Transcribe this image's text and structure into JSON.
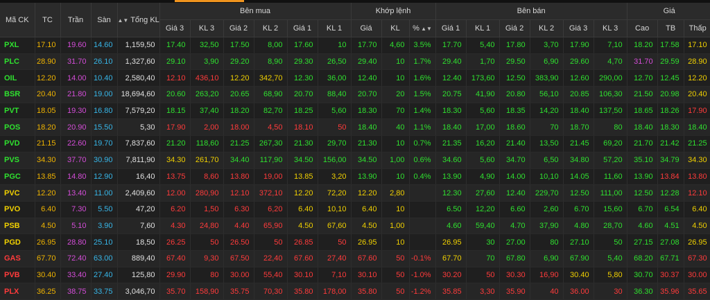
{
  "columns": {
    "symbol": "Mã CK",
    "ref": "TC",
    "ceil": "Trần",
    "floor": "Sàn",
    "total_vol": "Tổng KL",
    "buy_group": "Bên mua",
    "match_group": "Khớp lệnh",
    "sell_group": "Bên bán",
    "price_group": "Giá",
    "buy": [
      "Giá 3",
      "KL 3",
      "Giá 2",
      "KL 2",
      "Giá 1",
      "KL 1"
    ],
    "match": [
      "Giá",
      "KL",
      "%"
    ],
    "sell": [
      "Giá 1",
      "KL 1",
      "Giá 2",
      "KL 2",
      "Giá 3",
      "KL 3"
    ],
    "price": [
      "Cao",
      "TB",
      "Thấp"
    ]
  },
  "sort_icon": "sort-arrows-icon",
  "colors": {
    "ref": "#f0b400",
    "ceil": "#d44dd8",
    "floor": "#37b6e8",
    "up": "#2fe02f",
    "down": "#ff3b3b",
    "eq": "#f0d000",
    "accent": "#f0941e"
  },
  "rows": [
    {
      "s": "PXL",
      "c": "u",
      "tc": "17.10",
      "tr": "19.60",
      "sa": "14.60",
      "tkl": "1,159,50",
      "b": [
        [
          "17.40",
          "u"
        ],
        [
          "32,50",
          "u"
        ],
        [
          "17.50",
          "u"
        ],
        [
          "8,00",
          "u"
        ],
        [
          "17.60",
          "u"
        ],
        [
          "10",
          "u"
        ]
      ],
      "m": [
        [
          "17.70",
          "u"
        ],
        [
          "4,60",
          "u"
        ],
        [
          "3.5%",
          "u"
        ]
      ],
      "a": [
        [
          "17.70",
          "u"
        ],
        [
          "5,40",
          "u"
        ],
        [
          "17.80",
          "u"
        ],
        [
          "3,70",
          "u"
        ],
        [
          "17.90",
          "u"
        ],
        [
          "7,10",
          "u"
        ]
      ],
      "p": [
        [
          "18.20",
          "u"
        ],
        [
          "17.58",
          "u"
        ],
        [
          "17.10",
          "r"
        ]
      ]
    },
    {
      "s": "PLC",
      "c": "u",
      "tc": "28.90",
      "tr": "31.70",
      "sa": "26.10",
      "tkl": "1,327,60",
      "b": [
        [
          "29.10",
          "u"
        ],
        [
          "3,90",
          "u"
        ],
        [
          "29.20",
          "u"
        ],
        [
          "8,90",
          "u"
        ],
        [
          "29.30",
          "u"
        ],
        [
          "26,50",
          "u"
        ]
      ],
      "m": [
        [
          "29.40",
          "u"
        ],
        [
          "10",
          "u"
        ],
        [
          "1.7%",
          "u"
        ]
      ],
      "a": [
        [
          "29.40",
          "u"
        ],
        [
          "1,70",
          "u"
        ],
        [
          "29.50",
          "u"
        ],
        [
          "6,90",
          "u"
        ],
        [
          "29.60",
          "u"
        ],
        [
          "4,70",
          "u"
        ]
      ],
      "p": [
        [
          "31.70",
          "c"
        ],
        [
          "29.59",
          "u"
        ],
        [
          "28.90",
          "r"
        ]
      ]
    },
    {
      "s": "OIL",
      "c": "u",
      "tc": "12.20",
      "tr": "14.00",
      "sa": "10.40",
      "tkl": "2,580,40",
      "b": [
        [
          "12.10",
          "d"
        ],
        [
          "436,10",
          "d"
        ],
        [
          "12.20",
          "r"
        ],
        [
          "342,70",
          "r"
        ],
        [
          "12.30",
          "u"
        ],
        [
          "36,00",
          "u"
        ]
      ],
      "m": [
        [
          "12.40",
          "u"
        ],
        [
          "10",
          "u"
        ],
        [
          "1.6%",
          "u"
        ]
      ],
      "a": [
        [
          "12.40",
          "u"
        ],
        [
          "173,60",
          "u"
        ],
        [
          "12.50",
          "u"
        ],
        [
          "383,90",
          "u"
        ],
        [
          "12.60",
          "u"
        ],
        [
          "290,00",
          "u"
        ]
      ],
      "p": [
        [
          "12.70",
          "u"
        ],
        [
          "12.45",
          "u"
        ],
        [
          "12.20",
          "r"
        ]
      ]
    },
    {
      "s": "BSR",
      "c": "u",
      "tc": "20.40",
      "tr": "21.80",
      "sa": "19.00",
      "tkl": "18,694,60",
      "b": [
        [
          "20.60",
          "u"
        ],
        [
          "263,20",
          "u"
        ],
        [
          "20.65",
          "u"
        ],
        [
          "68,90",
          "u"
        ],
        [
          "20.70",
          "u"
        ],
        [
          "88,40",
          "u"
        ]
      ],
      "m": [
        [
          "20.70",
          "u"
        ],
        [
          "20",
          "u"
        ],
        [
          "1.5%",
          "u"
        ]
      ],
      "a": [
        [
          "20.75",
          "u"
        ],
        [
          "41,90",
          "u"
        ],
        [
          "20.80",
          "u"
        ],
        [
          "56,10",
          "u"
        ],
        [
          "20.85",
          "u"
        ],
        [
          "106,30",
          "u"
        ]
      ],
      "p": [
        [
          "21.50",
          "u"
        ],
        [
          "20.98",
          "u"
        ],
        [
          "20.40",
          "r"
        ]
      ]
    },
    {
      "s": "PVT",
      "c": "u",
      "tc": "18.05",
      "tr": "19.30",
      "sa": "16.80",
      "tkl": "7,579,20",
      "b": [
        [
          "18.15",
          "u"
        ],
        [
          "37,40",
          "u"
        ],
        [
          "18.20",
          "u"
        ],
        [
          "82,70",
          "u"
        ],
        [
          "18.25",
          "u"
        ],
        [
          "5,60",
          "u"
        ]
      ],
      "m": [
        [
          "18.30",
          "u"
        ],
        [
          "70",
          "u"
        ],
        [
          "1.4%",
          "u"
        ]
      ],
      "a": [
        [
          "18.30",
          "u"
        ],
        [
          "5,60",
          "u"
        ],
        [
          "18.35",
          "u"
        ],
        [
          "14,20",
          "u"
        ],
        [
          "18.40",
          "u"
        ],
        [
          "137,50",
          "u"
        ]
      ],
      "p": [
        [
          "18.65",
          "u"
        ],
        [
          "18.26",
          "u"
        ],
        [
          "17.90",
          "d"
        ]
      ]
    },
    {
      "s": "POS",
      "c": "u",
      "tc": "18.20",
      "tr": "20.90",
      "sa": "15.50",
      "tkl": "5,30",
      "b": [
        [
          "17.90",
          "d"
        ],
        [
          "2,00",
          "d"
        ],
        [
          "18.00",
          "d"
        ],
        [
          "4,50",
          "d"
        ],
        [
          "18.10",
          "d"
        ],
        [
          "50",
          "d"
        ]
      ],
      "m": [
        [
          "18.40",
          "u"
        ],
        [
          "40",
          "u"
        ],
        [
          "1.1%",
          "u"
        ]
      ],
      "a": [
        [
          "18.40",
          "u"
        ],
        [
          "17,00",
          "u"
        ],
        [
          "18.60",
          "u"
        ],
        [
          "70",
          "u"
        ],
        [
          "18.70",
          "u"
        ],
        [
          "80",
          "u"
        ]
      ],
      "p": [
        [
          "18.40",
          "u"
        ],
        [
          "18.30",
          "u"
        ],
        [
          "18.40",
          "u"
        ]
      ]
    },
    {
      "s": "PVD",
      "c": "u",
      "tc": "21.15",
      "tr": "22.60",
      "sa": "19.70",
      "tkl": "7,837,60",
      "b": [
        [
          "21.20",
          "u"
        ],
        [
          "118,60",
          "u"
        ],
        [
          "21.25",
          "u"
        ],
        [
          "267,30",
          "u"
        ],
        [
          "21.30",
          "u"
        ],
        [
          "29,70",
          "u"
        ]
      ],
      "m": [
        [
          "21.30",
          "u"
        ],
        [
          "10",
          "u"
        ],
        [
          "0.7%",
          "u"
        ]
      ],
      "a": [
        [
          "21.35",
          "u"
        ],
        [
          "16,20",
          "u"
        ],
        [
          "21.40",
          "u"
        ],
        [
          "13,50",
          "u"
        ],
        [
          "21.45",
          "u"
        ],
        [
          "69,20",
          "u"
        ]
      ],
      "p": [
        [
          "21.70",
          "u"
        ],
        [
          "21.42",
          "u"
        ],
        [
          "21.25",
          "u"
        ]
      ]
    },
    {
      "s": "PVS",
      "c": "u",
      "tc": "34.30",
      "tr": "37.70",
      "sa": "30.90",
      "tkl": "7,811,90",
      "b": [
        [
          "34.30",
          "r"
        ],
        [
          "261,70",
          "r"
        ],
        [
          "34.40",
          "u"
        ],
        [
          "117,90",
          "u"
        ],
        [
          "34.50",
          "u"
        ],
        [
          "156,00",
          "u"
        ]
      ],
      "m": [
        [
          "34.50",
          "u"
        ],
        [
          "1,00",
          "u"
        ],
        [
          "0.6%",
          "u"
        ]
      ],
      "a": [
        [
          "34.60",
          "u"
        ],
        [
          "5,60",
          "u"
        ],
        [
          "34.70",
          "u"
        ],
        [
          "6,50",
          "u"
        ],
        [
          "34.80",
          "u"
        ],
        [
          "57,20",
          "u"
        ]
      ],
      "p": [
        [
          "35.10",
          "u"
        ],
        [
          "34.79",
          "u"
        ],
        [
          "34.30",
          "r"
        ]
      ]
    },
    {
      "s": "PGC",
      "c": "u",
      "tc": "13.85",
      "tr": "14.80",
      "sa": "12.90",
      "tkl": "16,40",
      "b": [
        [
          "13.75",
          "d"
        ],
        [
          "8,60",
          "d"
        ],
        [
          "13.80",
          "d"
        ],
        [
          "19,00",
          "d"
        ],
        [
          "13.85",
          "r"
        ],
        [
          "3,20",
          "r"
        ]
      ],
      "m": [
        [
          "13.90",
          "u"
        ],
        [
          "10",
          "u"
        ],
        [
          "0.4%",
          "u"
        ]
      ],
      "a": [
        [
          "13.90",
          "u"
        ],
        [
          "4,90",
          "u"
        ],
        [
          "14.00",
          "u"
        ],
        [
          "10,10",
          "u"
        ],
        [
          "14.05",
          "u"
        ],
        [
          "11,60",
          "u"
        ]
      ],
      "p": [
        [
          "13.90",
          "u"
        ],
        [
          "13.84",
          "d"
        ],
        [
          "13.80",
          "d"
        ]
      ]
    },
    {
      "s": "PVC",
      "c": "r",
      "tc": "12.20",
      "tr": "13.40",
      "sa": "11.00",
      "tkl": "2,409,60",
      "b": [
        [
          "12.00",
          "d"
        ],
        [
          "280,90",
          "d"
        ],
        [
          "12.10",
          "d"
        ],
        [
          "372,10",
          "d"
        ],
        [
          "12.20",
          "r"
        ],
        [
          "72,20",
          "r"
        ]
      ],
      "m": [
        [
          "12.20",
          "r"
        ],
        [
          "2,80",
          "r"
        ],
        [
          "",
          ""
        ]
      ],
      "a": [
        [
          "12.30",
          "u"
        ],
        [
          "27,60",
          "u"
        ],
        [
          "12.40",
          "u"
        ],
        [
          "229,70",
          "u"
        ],
        [
          "12.50",
          "u"
        ],
        [
          "111,00",
          "u"
        ]
      ],
      "p": [
        [
          "12.50",
          "u"
        ],
        [
          "12.28",
          "u"
        ],
        [
          "12.10",
          "d"
        ]
      ]
    },
    {
      "s": "PVO",
      "c": "r",
      "tc": "6.40",
      "tr": "7.30",
      "sa": "5.50",
      "tkl": "47,20",
      "b": [
        [
          "6.20",
          "d"
        ],
        [
          "1,50",
          "d"
        ],
        [
          "6.30",
          "d"
        ],
        [
          "6,20",
          "d"
        ],
        [
          "6.40",
          "r"
        ],
        [
          "10,10",
          "r"
        ]
      ],
      "m": [
        [
          "6.40",
          "r"
        ],
        [
          "10",
          "r"
        ],
        [
          "",
          ""
        ]
      ],
      "a": [
        [
          "6.50",
          "u"
        ],
        [
          "12,20",
          "u"
        ],
        [
          "6.60",
          "u"
        ],
        [
          "2,60",
          "u"
        ],
        [
          "6.70",
          "u"
        ],
        [
          "15,60",
          "u"
        ]
      ],
      "p": [
        [
          "6.70",
          "u"
        ],
        [
          "6.54",
          "u"
        ],
        [
          "6.40",
          "r"
        ]
      ]
    },
    {
      "s": "PSB",
      "c": "r",
      "tc": "4.50",
      "tr": "5.10",
      "sa": "3.90",
      "tkl": "7,60",
      "b": [
        [
          "4.30",
          "d"
        ],
        [
          "24,80",
          "d"
        ],
        [
          "4.40",
          "d"
        ],
        [
          "65,90",
          "d"
        ],
        [
          "4.50",
          "r"
        ],
        [
          "67,60",
          "r"
        ]
      ],
      "m": [
        [
          "4.50",
          "r"
        ],
        [
          "1,00",
          "r"
        ],
        [
          "",
          ""
        ]
      ],
      "a": [
        [
          "4.60",
          "u"
        ],
        [
          "59,40",
          "u"
        ],
        [
          "4.70",
          "u"
        ],
        [
          "37,90",
          "u"
        ],
        [
          "4.80",
          "u"
        ],
        [
          "28,70",
          "u"
        ]
      ],
      "p": [
        [
          "4.60",
          "u"
        ],
        [
          "4.51",
          "u"
        ],
        [
          "4.50",
          "r"
        ]
      ]
    },
    {
      "s": "PGD",
      "c": "r",
      "tc": "26.95",
      "tr": "28.80",
      "sa": "25.10",
      "tkl": "18,50",
      "b": [
        [
          "26.25",
          "d"
        ],
        [
          "50",
          "d"
        ],
        [
          "26.50",
          "d"
        ],
        [
          "50",
          "d"
        ],
        [
          "26.85",
          "d"
        ],
        [
          "50",
          "d"
        ]
      ],
      "m": [
        [
          "26.95",
          "r"
        ],
        [
          "10",
          "r"
        ],
        [
          "",
          ""
        ]
      ],
      "a": [
        [
          "26.95",
          "r"
        ],
        [
          "30",
          "u"
        ],
        [
          "27.00",
          "u"
        ],
        [
          "80",
          "u"
        ],
        [
          "27.10",
          "u"
        ],
        [
          "50",
          "u"
        ]
      ],
      "p": [
        [
          "27.15",
          "u"
        ],
        [
          "27.08",
          "u"
        ],
        [
          "26.95",
          "r"
        ]
      ]
    },
    {
      "s": "GAS",
      "c": "d",
      "tc": "67.70",
      "tr": "72.40",
      "sa": "63.00",
      "tkl": "889,40",
      "b": [
        [
          "67.40",
          "d"
        ],
        [
          "9,30",
          "d"
        ],
        [
          "67.50",
          "d"
        ],
        [
          "22,40",
          "d"
        ],
        [
          "67.60",
          "d"
        ],
        [
          "27,40",
          "d"
        ]
      ],
      "m": [
        [
          "67.60",
          "d"
        ],
        [
          "50",
          "d"
        ],
        [
          "-0.1%",
          "d"
        ]
      ],
      "a": [
        [
          "67.70",
          "r"
        ],
        [
          "70",
          "u"
        ],
        [
          "67.80",
          "u"
        ],
        [
          "6,90",
          "u"
        ],
        [
          "67.90",
          "u"
        ],
        [
          "5,40",
          "u"
        ]
      ],
      "p": [
        [
          "68.20",
          "u"
        ],
        [
          "67.71",
          "u"
        ],
        [
          "67.30",
          "d"
        ]
      ]
    },
    {
      "s": "PVB",
      "c": "d",
      "tc": "30.40",
      "tr": "33.40",
      "sa": "27.40",
      "tkl": "125,80",
      "b": [
        [
          "29.90",
          "d"
        ],
        [
          "80",
          "d"
        ],
        [
          "30.00",
          "d"
        ],
        [
          "55,40",
          "d"
        ],
        [
          "30.10",
          "d"
        ],
        [
          "7,10",
          "d"
        ]
      ],
      "m": [
        [
          "30.10",
          "d"
        ],
        [
          "50",
          "d"
        ],
        [
          "-1.0%",
          "d"
        ]
      ],
      "a": [
        [
          "30.20",
          "d"
        ],
        [
          "50",
          "d"
        ],
        [
          "30.30",
          "d"
        ],
        [
          "16,90",
          "d"
        ],
        [
          "30.40",
          "r"
        ],
        [
          "5,80",
          "r"
        ]
      ],
      "p": [
        [
          "30.70",
          "u"
        ],
        [
          "30.37",
          "d"
        ],
        [
          "30.00",
          "d"
        ]
      ]
    },
    {
      "s": "PLX",
      "c": "d",
      "tc": "36.25",
      "tr": "38.75",
      "sa": "33.75",
      "tkl": "3,046,70",
      "b": [
        [
          "35.70",
          "d"
        ],
        [
          "158,90",
          "d"
        ],
        [
          "35.75",
          "d"
        ],
        [
          "70,30",
          "d"
        ],
        [
          "35.80",
          "d"
        ],
        [
          "178,00",
          "d"
        ]
      ],
      "m": [
        [
          "35.80",
          "d"
        ],
        [
          "50",
          "d"
        ],
        [
          "-1.2%",
          "d"
        ]
      ],
      "a": [
        [
          "35.85",
          "d"
        ],
        [
          "3,30",
          "d"
        ],
        [
          "35.90",
          "d"
        ],
        [
          "40",
          "d"
        ],
        [
          "36.00",
          "d"
        ],
        [
          "30",
          "d"
        ]
      ],
      "p": [
        [
          "36.30",
          "u"
        ],
        [
          "35.96",
          "d"
        ],
        [
          "35.65",
          "d"
        ]
      ]
    }
  ]
}
